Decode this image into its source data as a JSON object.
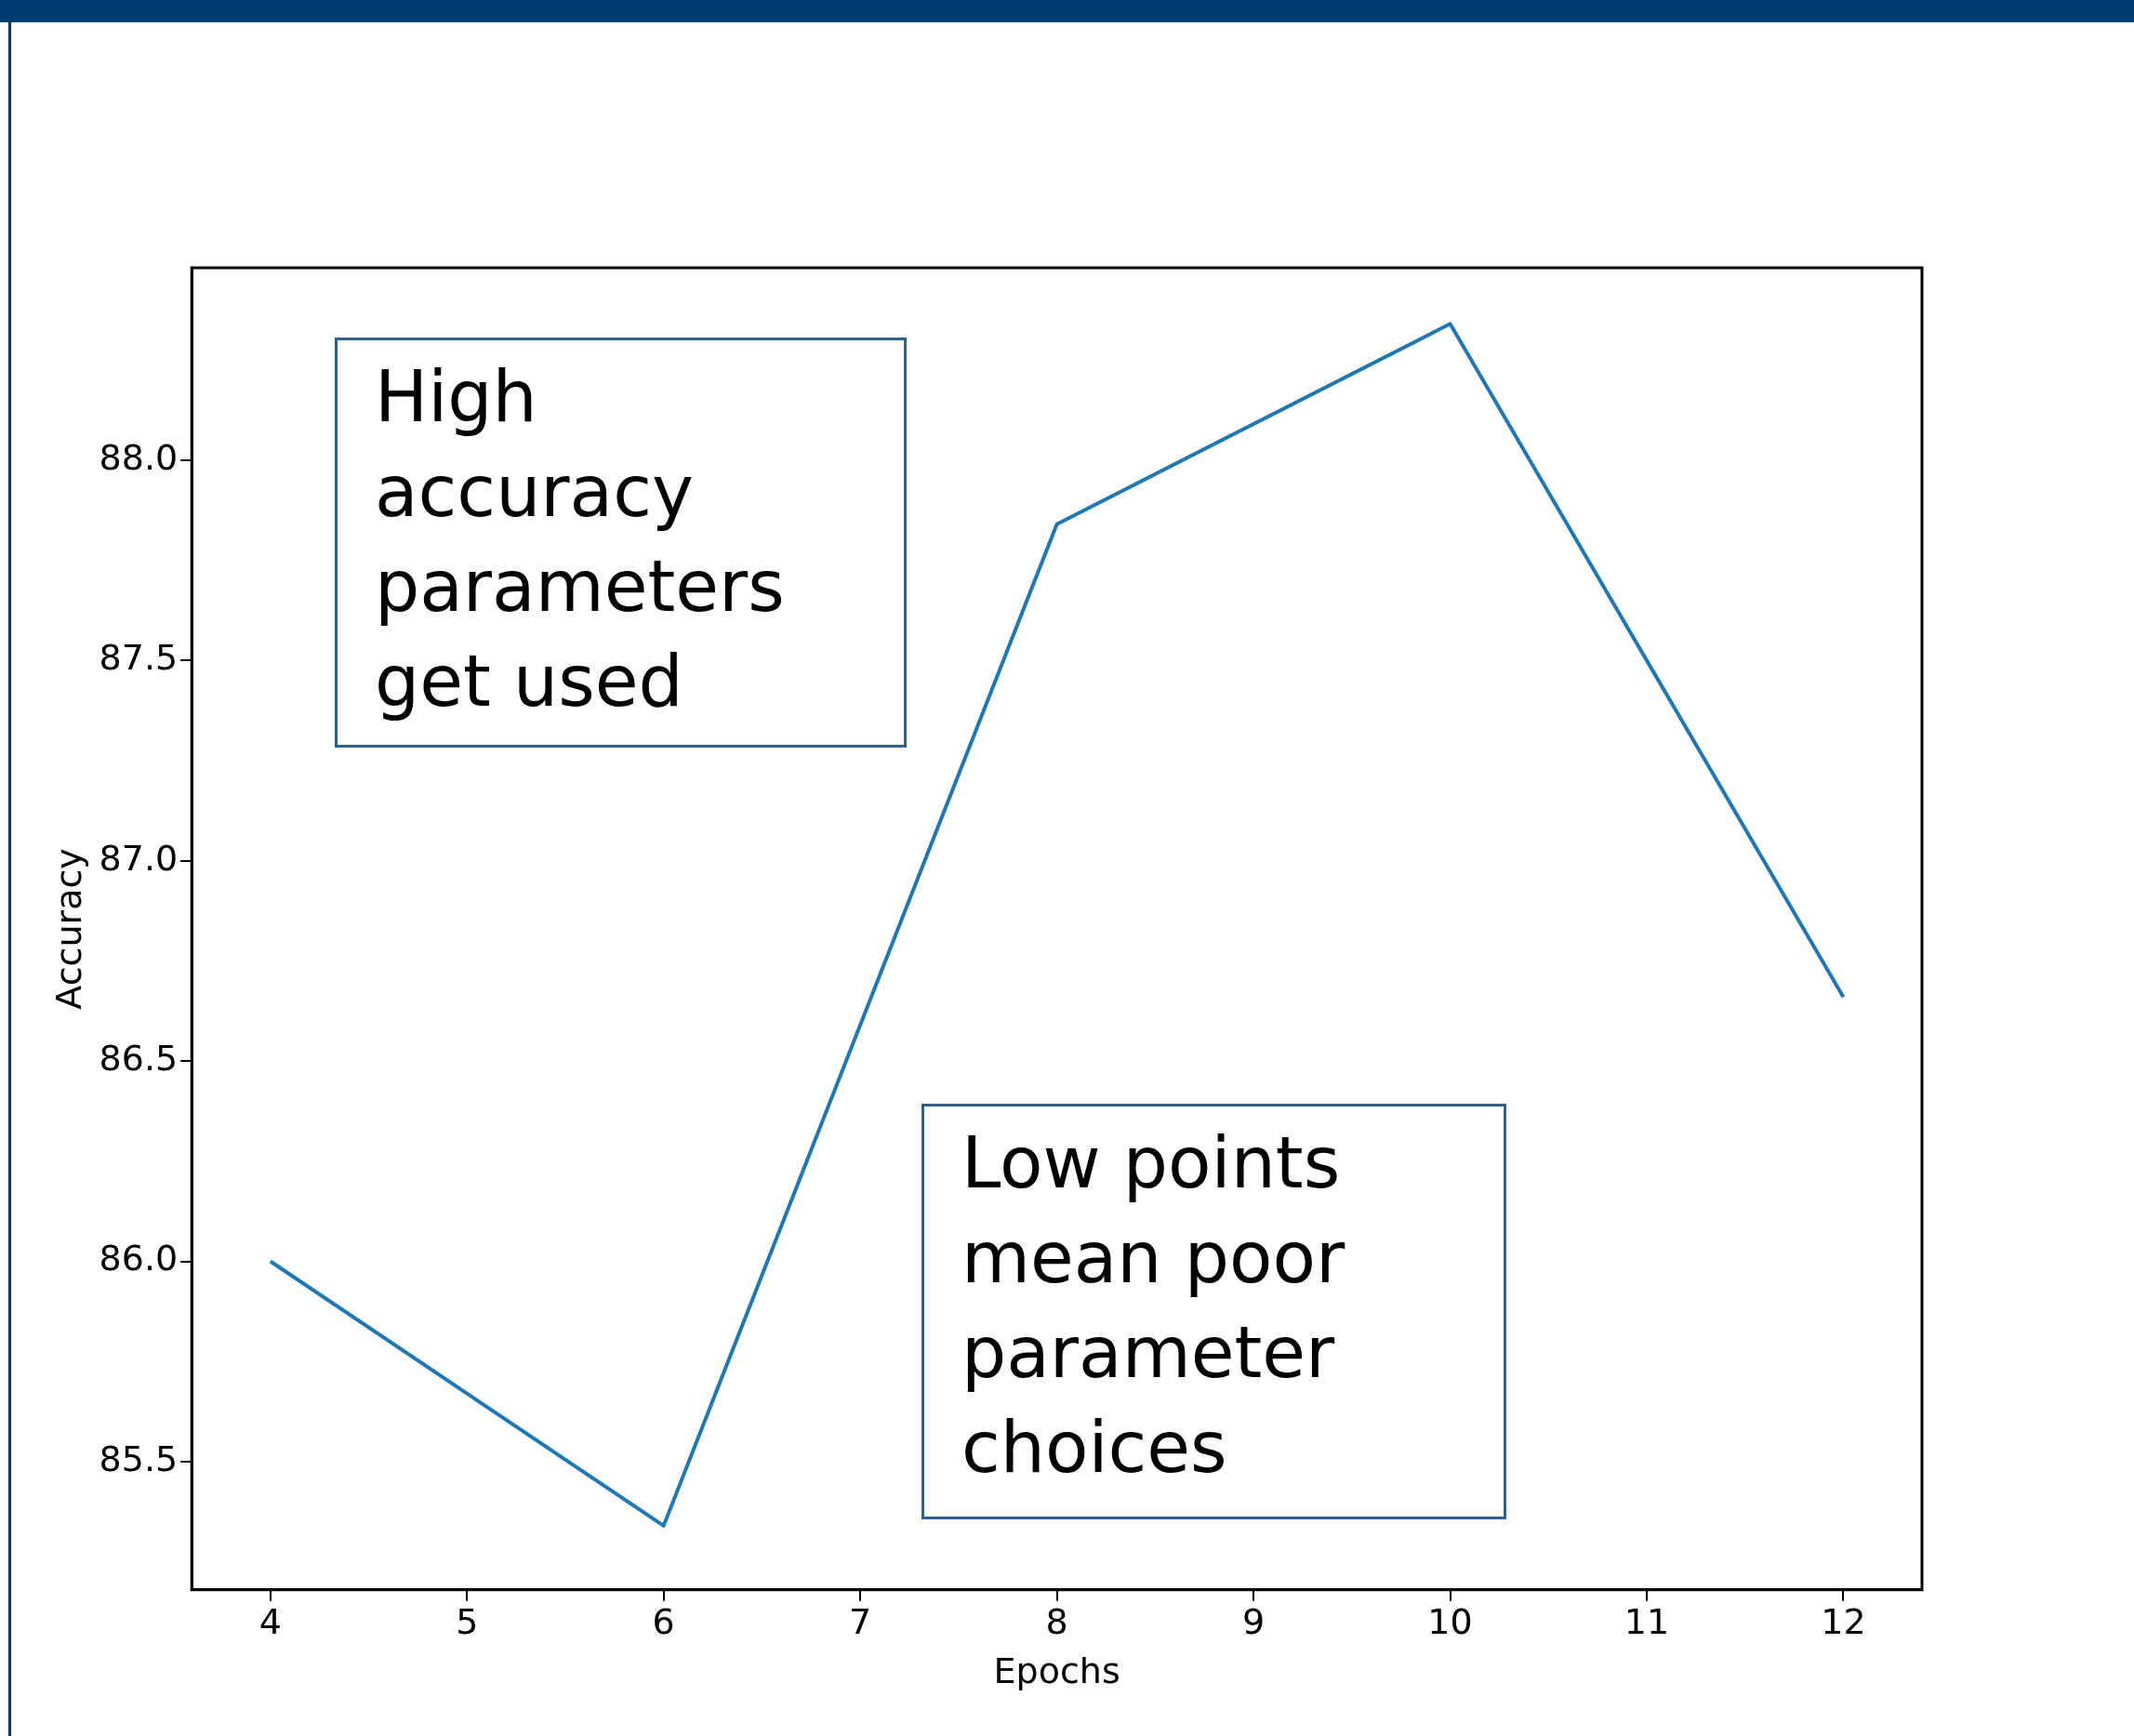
{
  "chart_data": {
    "type": "line",
    "xlabel": "Epochs",
    "ylabel": "Accuracy",
    "x": [
      4,
      6,
      8,
      10,
      12
    ],
    "series": [
      {
        "color": "#1f77b4",
        "values": [
          86.0,
          85.34,
          87.84,
          88.34,
          86.66
        ]
      }
    ],
    "xlim": [
      3.6,
      12.4
    ],
    "ylim": [
      85.18,
      88.48
    ],
    "xticks": [
      4,
      5,
      6,
      7,
      8,
      9,
      10,
      11,
      12
    ],
    "yticks": [
      {
        "value": 85.5,
        "label": "85.5"
      },
      {
        "value": 86,
        "label": "86.0"
      },
      {
        "value": 86.5,
        "label": "86.5"
      },
      {
        "value": 87,
        "label": "87.0"
      },
      {
        "value": 87.5,
        "label": "87.5"
      },
      {
        "value": 88,
        "label": "88.0"
      }
    ],
    "annotations": [
      "High accuracy parameters get used",
      "Low points mean poor parameter choices"
    ]
  }
}
